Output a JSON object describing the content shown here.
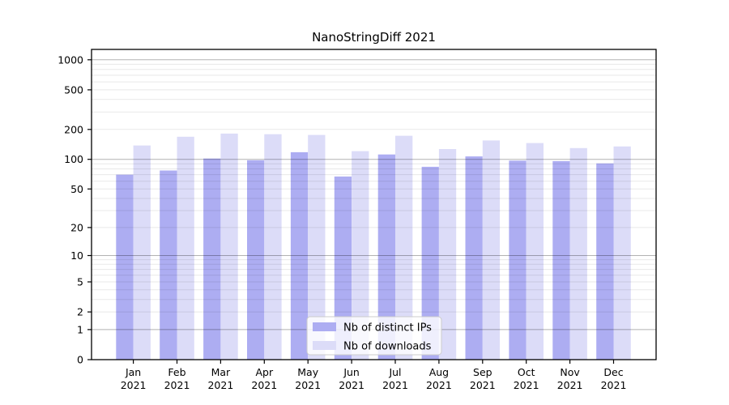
{
  "title": "NanoStringDiff 2021",
  "chart_data": {
    "type": "bar",
    "title": "NanoStringDiff 2021",
    "yscale": "log10(1+y)",
    "xlabel": "",
    "ylabel": "",
    "ylim": [
      0,
      1300
    ],
    "grid": true,
    "legend_position": "bottom-center",
    "yticks": [
      0,
      1,
      2,
      5,
      10,
      20,
      50,
      100,
      200,
      500,
      1000
    ],
    "major_gridlines": [
      1,
      10,
      100,
      1000
    ],
    "categories": [
      "Jan",
      "Feb",
      "Mar",
      "Apr",
      "May",
      "Jun",
      "Jul",
      "Aug",
      "Sep",
      "Oct",
      "Nov",
      "Dec"
    ],
    "year_label": "2021",
    "series": [
      {
        "name": "Nb of distinct IPs",
        "color": "#adadf2",
        "values": [
          70,
          77,
          102,
          98,
          118,
          67,
          112,
          84,
          107,
          97,
          96,
          91
        ]
      },
      {
        "name": "Nb of downloads",
        "color": "#dcdcf8",
        "values": [
          138,
          169,
          182,
          179,
          176,
          121,
          173,
          127,
          155,
          146,
          130,
          135
        ]
      }
    ],
    "legend": {
      "labels": [
        "Nb of distinct IPs",
        "Nb of downloads"
      ]
    }
  },
  "colors": {
    "spine": "#000000",
    "minor_grid": "rgba(0,0,0,0.09)",
    "major_grid": "rgba(0,0,0,0.30)",
    "legend_border": "#cccccc",
    "legend_bg": "rgba(255,255,255,0.8)"
  }
}
